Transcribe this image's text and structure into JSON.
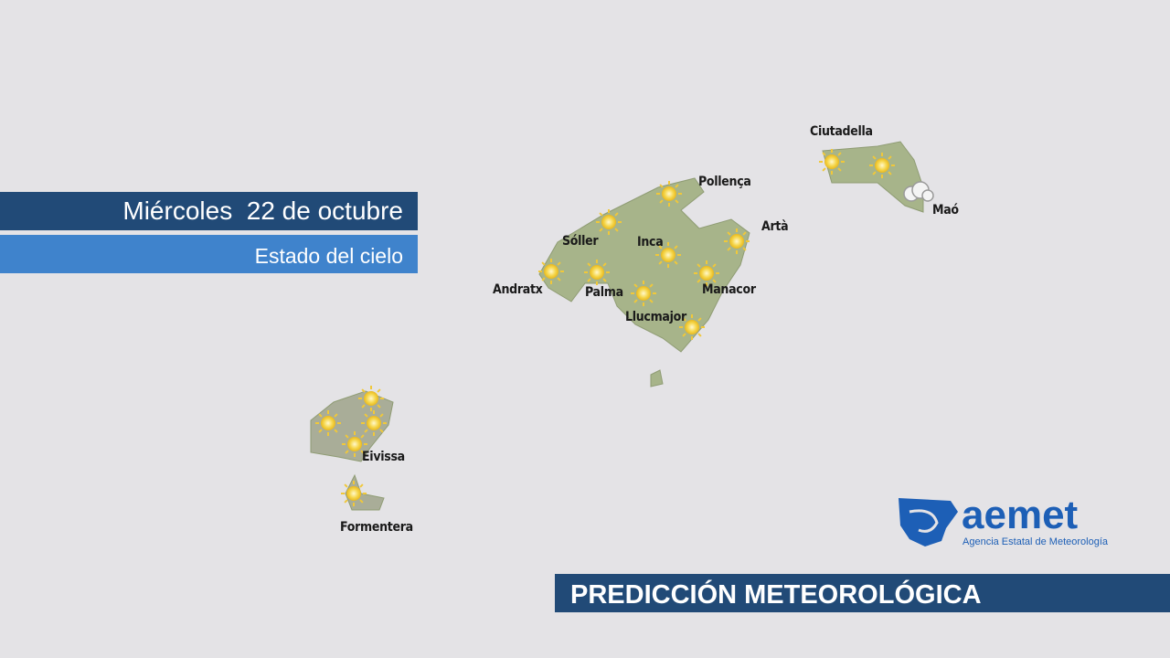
{
  "header": {
    "date": "Miércoles  22 de octubre",
    "subtitle": "Estado del cielo"
  },
  "places": [
    {
      "name": "Ciutadella"
    },
    {
      "name": "Pollença"
    },
    {
      "name": "Artà"
    },
    {
      "name": "Maó"
    },
    {
      "name": "Sóller"
    },
    {
      "name": "Inca"
    },
    {
      "name": "Andratx"
    },
    {
      "name": "Palma"
    },
    {
      "name": "Manacor"
    },
    {
      "name": "Llucmajor"
    },
    {
      "name": "Eivissa"
    },
    {
      "name": "Formentera"
    }
  ],
  "logo": {
    "name": "aemet",
    "tagline": "Agencia Estatal de Meteorología"
  },
  "footer": "PREDICCIÓN METEOROLÓGICA"
}
